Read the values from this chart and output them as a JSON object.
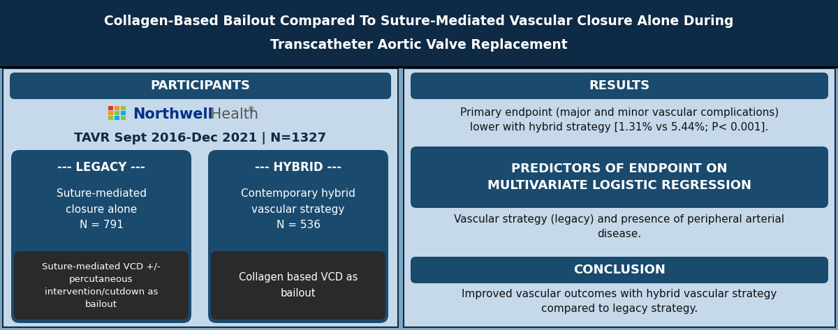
{
  "title_line1": "Collagen-Based Bailout Compared To Suture-Mediated Vascular Closure Alone During",
  "title_line2": "Transcatheter Aortic Valve Replacement",
  "title_bg": "#0e2a45",
  "title_color": "#ffffff",
  "left_bg": "#c5d9ea",
  "right_bg": "#c5d9ea",
  "section_header_bg": "#1a4a6e",
  "section_header_color": "#ffffff",
  "participants_header": "PARTICIPANTS",
  "tavr_text": "TAVR Sept 2016-Dec 2021 | N=1327",
  "legacy_header": "--- LEGACY ---",
  "legacy_desc": "Suture-mediated\nclosure alone\nN = 791",
  "legacy_bailout": "Suture-mediated VCD +/-\npercutaneous\nintervention/cutdown as\nbailout",
  "hybrid_header": "--- HYBRID ---",
  "hybrid_desc": "Contemporary hybrid\nvascular strategy\nN = 536",
  "hybrid_bailout": "Collagen based VCD as\nbailout",
  "results_header": "RESULTS",
  "results_text": "Primary endpoint (major and minor vascular complications)\nlower with hybrid strategy [1.31% vs 5.44%; P< 0.001].",
  "predictors_header": "PREDICTORS OF ENDPOINT ON\nMULTIVARIATE LOGISTIC REGRESSION",
  "predictors_text": "Vascular strategy (legacy) and presence of peripheral arterial\ndisease.",
  "conclusion_header": "CONCLUSION",
  "conclusion_text": "Improved vascular outcomes with hybrid vascular strategy\ncompared to legacy strategy.",
  "dark_box_bg": "#1a4a6e",
  "darker_box_bg": "#2a2a2a",
  "outer_bg": "#7da8c5",
  "border_color": "#0e2a45",
  "northwell_blue": "#003087",
  "northwell_gray": "#555555",
  "nh_colors": [
    "#e8321e",
    "#f7941d",
    "#f7941d",
    "#8dc63f",
    "#00aeef",
    "#8dc63f",
    "#e8321e",
    "#8dc63f",
    "#00aeef"
  ]
}
